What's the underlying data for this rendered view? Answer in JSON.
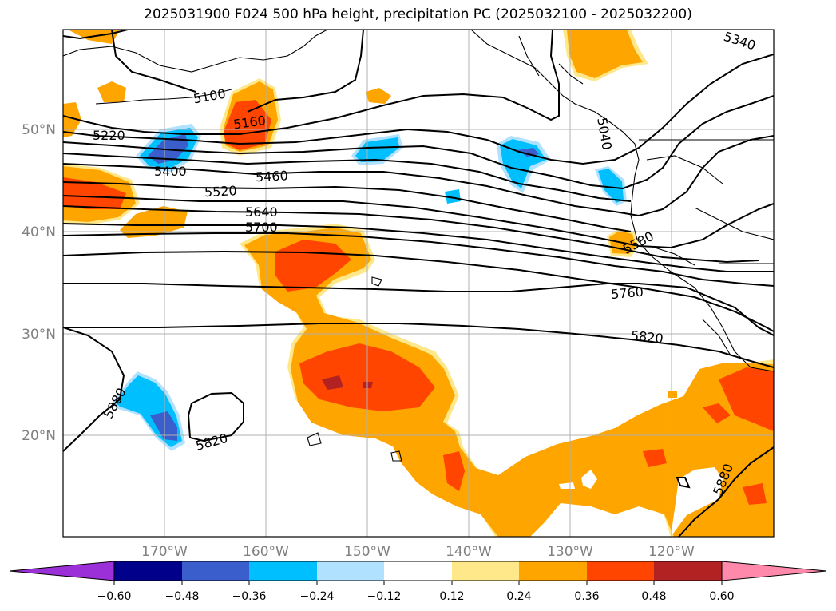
{
  "title": "2025031900 F024 500 hPa height, precipitation PC (2025032100 - 2025032200)",
  "map": {
    "lat_labels": [
      "50°N",
      "40°N",
      "30°N",
      "20°N"
    ],
    "lon_labels": [
      "170°W",
      "160°W",
      "150°W",
      "140°W",
      "130°W",
      "120°W"
    ],
    "contour_labels": [
      "5340",
      "5100",
      "5160",
      "5220",
      "5400",
      "5460",
      "5520",
      "5640",
      "5700",
      "5580",
      "5760",
      "5820",
      "5880",
      "5820",
      "5880",
      "5040"
    ]
  },
  "colorbar": {
    "ticks": [
      "−0.60",
      "−0.48",
      "−0.36",
      "−0.24",
      "−0.12",
      "0.12",
      "0.24",
      "0.36",
      "0.48",
      "0.60"
    ],
    "colors": [
      "#9b30d9",
      "#00008b",
      "#3a5fcd",
      "#00bfff",
      "#b0e2ff",
      "#ffffff",
      "#ffe88a",
      "#ffa500",
      "#ff4500",
      "#b22222",
      "#ff89ab"
    ]
  }
}
